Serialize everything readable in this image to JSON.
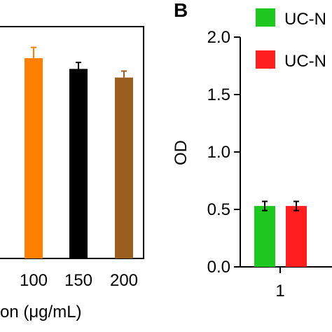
{
  "chart_data": [
    {
      "type": "bar",
      "panel_label": "",
      "categories": [
        "100",
        "150",
        "200"
      ],
      "values": [
        0.93,
        0.88,
        0.84
      ],
      "errors": [
        0.05,
        0.03,
        0.03
      ],
      "colors": [
        "#ff8000",
        "#000000",
        "#9a5e1f"
      ],
      "xlabel_fragment": "on (μg/mL)",
      "ylim": [
        0,
        1.2
      ]
    },
    {
      "type": "bar",
      "panel_label": "B",
      "ylabel": "OD",
      "ylim": [
        0,
        2.0
      ],
      "yticks": [
        "0.0",
        "0.5",
        "1.0",
        "1.5",
        "2.0"
      ],
      "categories": [
        "1"
      ],
      "series": [
        {
          "name": "UC-N",
          "color": "#1ec81e",
          "values": [
            0.53
          ],
          "errors": [
            0.04
          ]
        },
        {
          "name": "UC-N",
          "color": "#ff1f1f",
          "values": [
            0.53
          ],
          "errors": [
            0.04
          ]
        }
      ]
    }
  ]
}
